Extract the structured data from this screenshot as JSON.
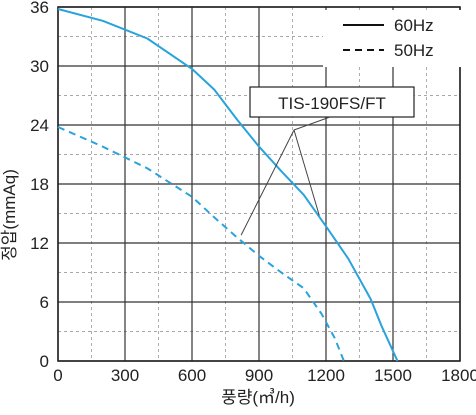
{
  "chart_data": {
    "type": "line",
    "xlabel": "풍량(㎥/h)",
    "ylabel": "정압(mmAq)",
    "xlim": [
      0,
      1800
    ],
    "ylim": [
      0,
      36
    ],
    "x_ticks": [
      0,
      300,
      600,
      900,
      1200,
      1500,
      1800
    ],
    "y_ticks": [
      0,
      6,
      12,
      18,
      24,
      30,
      36
    ],
    "grid": true,
    "legend_position": "top-right",
    "annotation": "TIS-190FS/FT",
    "series_color": "#29a3dc",
    "series": [
      {
        "name": "60Hz",
        "style": "solid",
        "points": [
          [
            0,
            35.8
          ],
          [
            200,
            34.6
          ],
          [
            400,
            32.8
          ],
          [
            600,
            29.7
          ],
          [
            700,
            27.6
          ],
          [
            800,
            24.6
          ],
          [
            900,
            21.8
          ],
          [
            1000,
            19.3
          ],
          [
            1100,
            16.9
          ],
          [
            1200,
            13.7
          ],
          [
            1300,
            10.4
          ],
          [
            1400,
            6.3
          ],
          [
            1450,
            3.5
          ],
          [
            1520,
            0
          ]
        ]
      },
      {
        "name": "50Hz",
        "style": "dashed",
        "points": [
          [
            0,
            23.8
          ],
          [
            200,
            21.8
          ],
          [
            400,
            19.6
          ],
          [
            600,
            16.7
          ],
          [
            700,
            14.6
          ],
          [
            800,
            12.6
          ],
          [
            900,
            10.7
          ],
          [
            1000,
            9.0
          ],
          [
            1100,
            7.4
          ],
          [
            1180,
            4.8
          ],
          [
            1240,
            2.3
          ],
          [
            1280,
            0
          ]
        ]
      }
    ]
  }
}
